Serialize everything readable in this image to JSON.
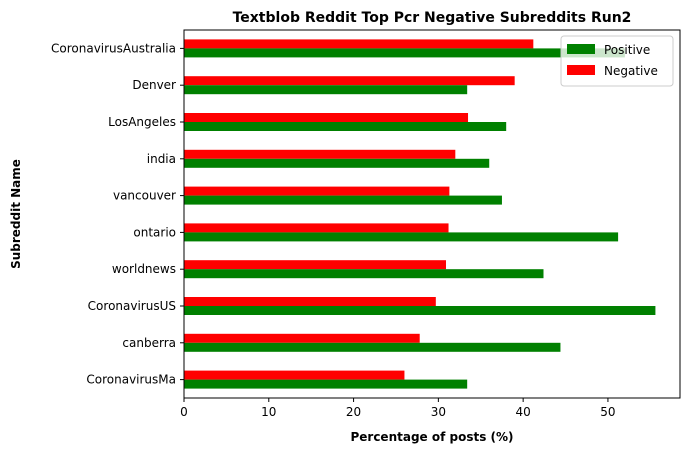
{
  "chart_data": {
    "type": "bar",
    "orientation": "horizontal",
    "title": "Textblob Reddit Top Pcr Negative Subreddits Run2",
    "xlabel": "Percentage of posts (%)",
    "ylabel": "Subreddit Name",
    "xlim": [
      0,
      58.5
    ],
    "xticks": [
      0,
      10,
      20,
      30,
      40,
      50
    ],
    "grid": false,
    "legend_position": "top-right",
    "categories": [
      "CoronavirusAustralia",
      "Denver",
      "LosAngeles",
      "india",
      "vancouver",
      "ontario",
      "worldnews",
      "CoronavirusUS",
      "canberra",
      "CoronavirusMa"
    ],
    "series": [
      {
        "name": "Positive",
        "color": "#008000",
        "values": [
          52.0,
          33.4,
          38.0,
          36.0,
          37.5,
          51.2,
          42.4,
          55.6,
          44.4,
          33.4
        ]
      },
      {
        "name": "Negative",
        "color": "#ff0000",
        "values": [
          41.2,
          39.0,
          33.5,
          32.0,
          31.3,
          31.2,
          30.9,
          29.7,
          27.8,
          26.0
        ]
      }
    ]
  }
}
